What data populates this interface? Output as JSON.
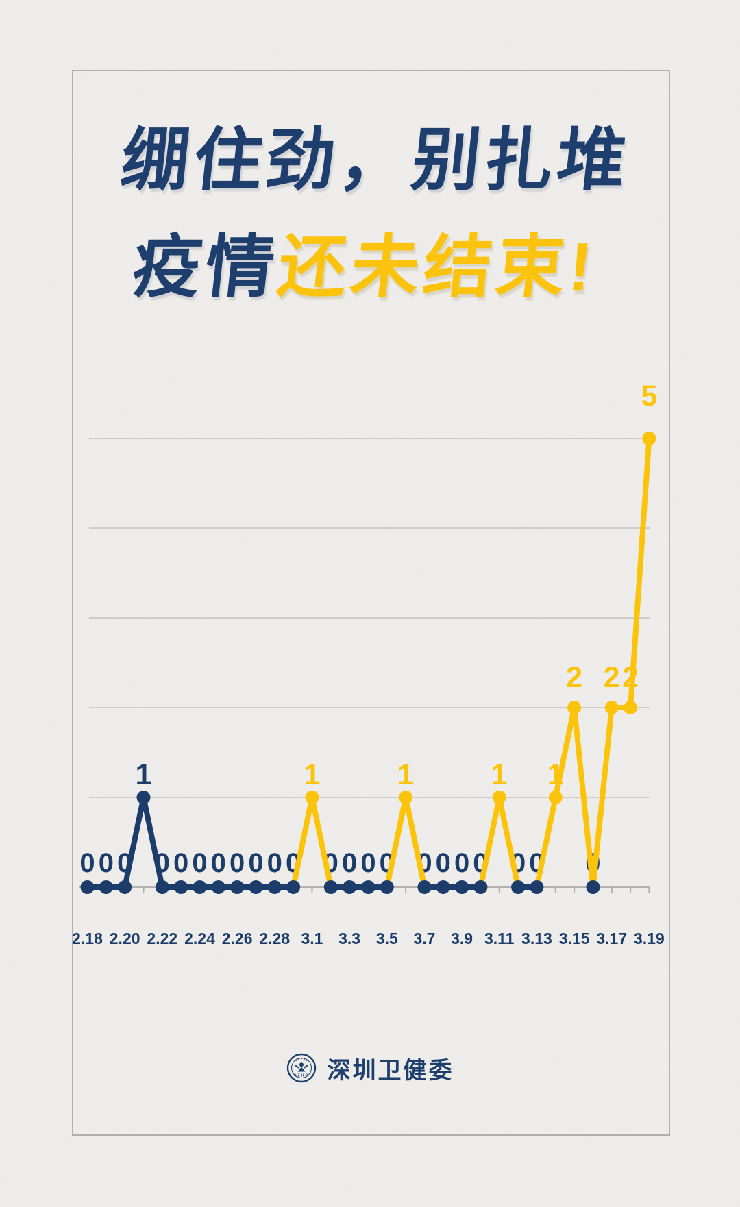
{
  "page": {
    "background_color": "#efeeec",
    "card_border_color": "#b1b0ae"
  },
  "title": {
    "line1": "绷住劲，别扎堆",
    "line2_part1": "疫情",
    "line2_part2": "还未结束!",
    "color_primary": "#1e3f6d",
    "color_accent": "#fbc30e"
  },
  "footer": {
    "org_name": "深圳卫健委",
    "logo_text": "SZHC"
  },
  "chart_data": {
    "type": "line",
    "x": [
      "2.18",
      "2.19",
      "2.20",
      "2.21",
      "2.22",
      "2.23",
      "2.24",
      "2.25",
      "2.26",
      "2.27",
      "2.28",
      "2.29",
      "3.1",
      "3.2",
      "3.3",
      "3.4",
      "3.5",
      "3.6",
      "3.7",
      "3.8",
      "3.9",
      "3.10",
      "3.11",
      "3.12",
      "3.13",
      "3.14",
      "3.15",
      "3.16",
      "3.17",
      "3.18",
      "3.19"
    ],
    "values": [
      0,
      0,
      0,
      1,
      0,
      0,
      0,
      0,
      0,
      0,
      0,
      0,
      1,
      0,
      0,
      0,
      0,
      1,
      0,
      0,
      0,
      0,
      1,
      0,
      0,
      1,
      2,
      0,
      2,
      2,
      5
    ],
    "point_colors": [
      "navy",
      "navy",
      "navy",
      "navy",
      "navy",
      "navy",
      "navy",
      "navy",
      "navy",
      "navy",
      "navy",
      "navy",
      "yellow",
      "navy",
      "navy",
      "navy",
      "navy",
      "yellow",
      "navy",
      "navy",
      "navy",
      "navy",
      "yellow",
      "navy",
      "navy",
      "yellow",
      "yellow",
      "navy",
      "yellow",
      "yellow",
      "yellow"
    ],
    "point_labels": [
      "0",
      "0",
      "0",
      "1",
      "0",
      "0",
      "0",
      "0",
      "0",
      "0",
      "0",
      "0",
      "1",
      "0",
      "0",
      "0",
      "0",
      "1",
      "0",
      "0",
      "0",
      "0",
      "1",
      "0",
      "0",
      "1",
      "2",
      "0",
      "2",
      "2",
      "5"
    ],
    "x_tick_labels": [
      "2.18",
      "2.20",
      "2.22",
      "2.24",
      "2.26",
      "2.28",
      "3.1",
      "3.3",
      "3.5",
      "3.7",
      "3.9",
      "3.11",
      "3.13",
      "3.15",
      "3.17",
      "3.19"
    ],
    "ylim": [
      0,
      5
    ],
    "gridline_values": [
      1,
      2,
      3,
      4,
      5
    ],
    "grid_on": true,
    "legend": "none",
    "colors": {
      "navy": "#1c3c6a",
      "yellow": "#fcc30b",
      "grid": "#c3c2c0",
      "axis": "#b4b3b1",
      "tick": "#aeadab"
    }
  }
}
